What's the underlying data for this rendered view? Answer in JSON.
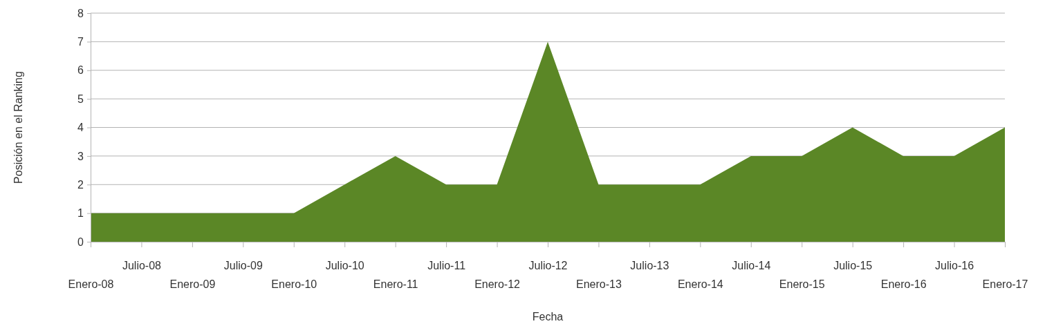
{
  "chart_data": {
    "type": "area",
    "xlabel": "Fecha",
    "ylabel": "Posición en el Ranking",
    "categories": [
      "Enero-08",
      "Julio-08",
      "Enero-09",
      "Julio-09",
      "Enero-10",
      "Julio-10",
      "Enero-11",
      "Julio-11",
      "Enero-12",
      "Julio-12",
      "Enero-13",
      "Julio-13",
      "Enero-14",
      "Julio-14",
      "Enero-15",
      "Julio-15",
      "Enero-16",
      "Julio-16",
      "Enero-17"
    ],
    "series": [
      {
        "color": "#5b8726",
        "values": [
          1,
          1,
          1,
          1,
          1,
          2,
          3,
          2,
          2,
          7,
          2,
          2,
          2,
          3,
          3,
          4,
          3,
          3,
          4
        ]
      }
    ],
    "ylim": [
      0,
      8
    ],
    "yticks": [
      0,
      1,
      2,
      3,
      4,
      5,
      6,
      7,
      8
    ],
    "grid": "y"
  }
}
